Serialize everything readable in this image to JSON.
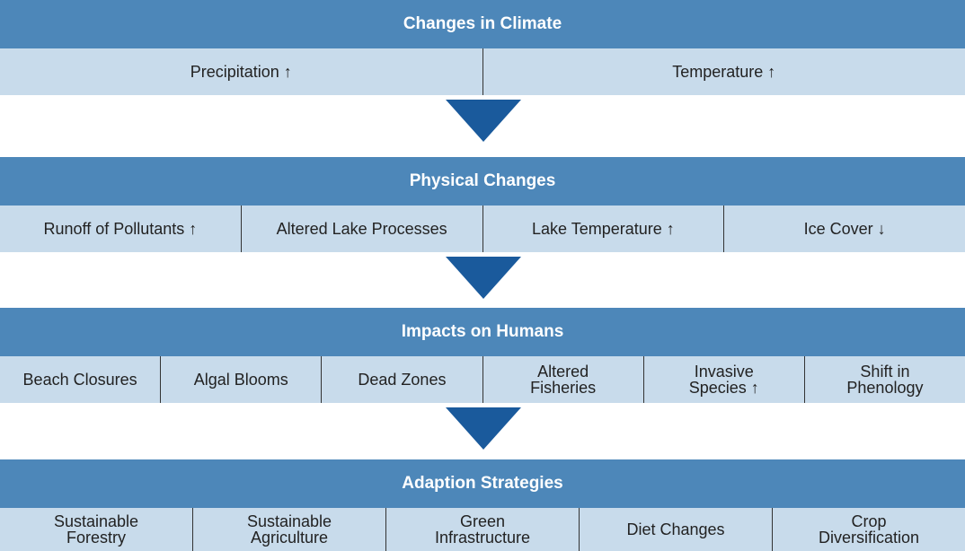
{
  "sections": [
    {
      "title": "Changes in Climate",
      "items": [
        "Precipitation ↑",
        "Temperature ↑"
      ]
    },
    {
      "title": "Physical Changes",
      "items": [
        "Runoff of Pollutants ↑",
        "Altered Lake Processes",
        "Lake Temperature ↑",
        "Ice Cover ↓"
      ]
    },
    {
      "title": "Impacts on Humans",
      "items": [
        "Beach Closures",
        "Algal Blooms",
        "Dead Zones",
        "Altered\nFisheries",
        "Invasive\nSpecies ↑",
        "Shift in\nPhenology"
      ]
    },
    {
      "title": "Adaption Strategies",
      "items": [
        "Sustainable\nForestry",
        "Sustainable\nAgriculture",
        "Green\nInfrastructure",
        "Diet Changes",
        "Crop\nDiversification"
      ]
    }
  ]
}
